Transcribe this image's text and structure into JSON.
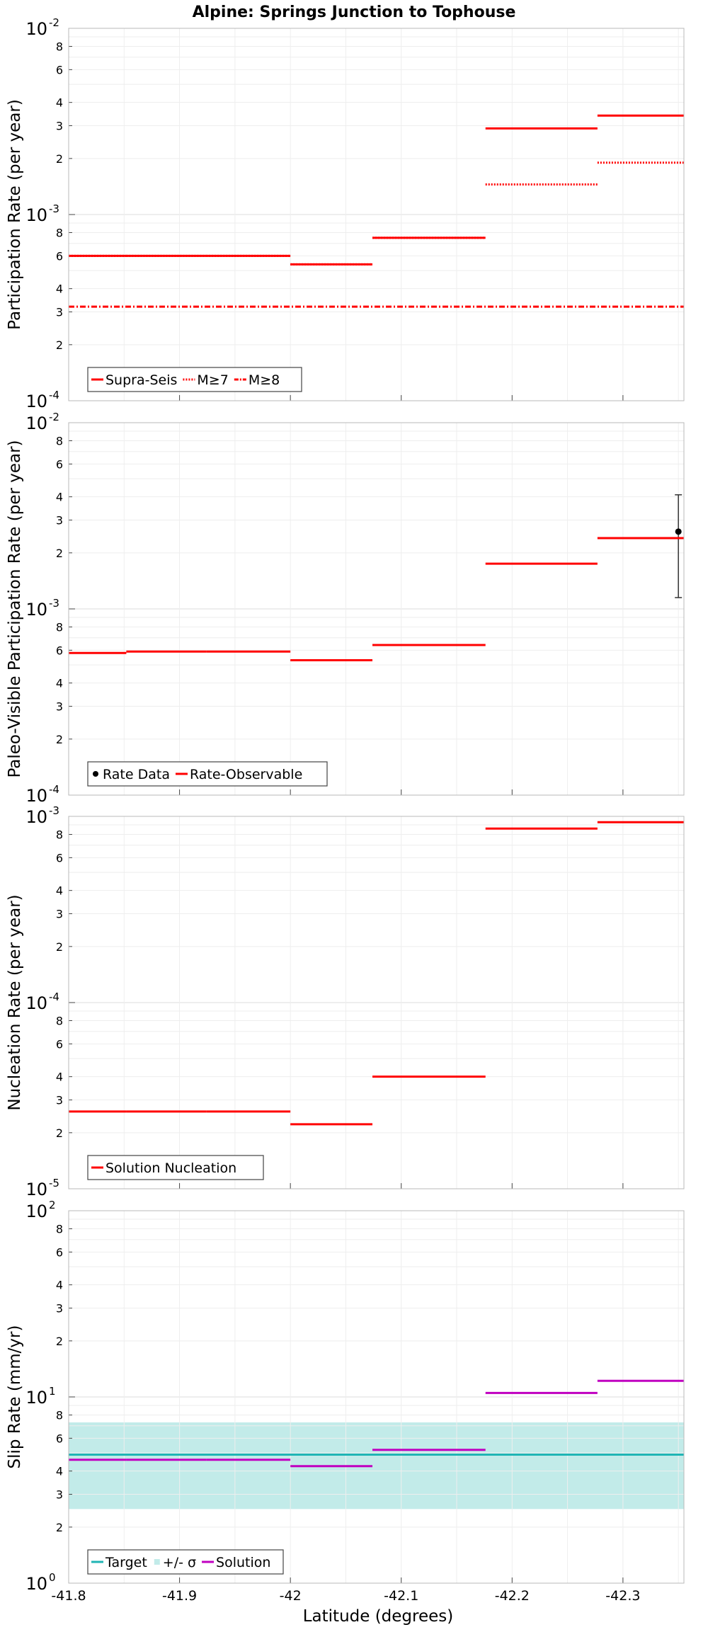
{
  "figure": {
    "title": "Alpine: Springs Junction to Tophouse",
    "xlabel": "Latitude (degrees)",
    "xlim": [
      -41.8,
      -42.355
    ],
    "xticks": [
      -41.8,
      -41.9,
      -42.0,
      -42.1,
      -42.2,
      -42.3
    ],
    "xtick_labels": [
      "-41.8",
      "-41.9",
      "-42",
      "-42.1",
      "-42.2",
      "-42.3"
    ]
  },
  "chart_data": [
    {
      "type": "line",
      "ylabel": "Participation Rate (per year)",
      "yscale": "log",
      "ylim": [
        0.0001,
        0.01
      ],
      "grid": true,
      "legend_position": "bottom-left",
      "major_tick_labels": [
        {
          "base": "10",
          "exp": "-4"
        },
        {
          "base": "10",
          "exp": "-3"
        },
        {
          "base": "10",
          "exp": "-2"
        }
      ],
      "series": [
        {
          "name": "Supra-Seis",
          "color": "#ff0000",
          "style": "solid",
          "segments": [
            {
              "x": [
                -41.8,
                -41.852
              ],
              "y": 0.0006
            },
            {
              "x": [
                -41.852,
                -41.924
              ],
              "y": 0.0006
            },
            {
              "x": [
                -41.924,
                -42.0
              ],
              "y": 0.0006
            },
            {
              "x": [
                -42.0,
                -42.074
              ],
              "y": 0.00054
            },
            {
              "x": [
                -42.074,
                -42.176
              ],
              "y": 0.00075
            },
            {
              "x": [
                -42.176,
                -42.277
              ],
              "y": 0.0029
            },
            {
              "x": [
                -42.277,
                -42.355
              ],
              "y": 0.0034
            }
          ]
        },
        {
          "name": "M≥7",
          "color": "#ff0000",
          "style": "dotted",
          "segments": [
            {
              "x": [
                -41.8,
                -41.852
              ],
              "y": 0.0006
            },
            {
              "x": [
                -41.852,
                -41.924
              ],
              "y": 0.0006
            },
            {
              "x": [
                -41.924,
                -42.0
              ],
              "y": 0.0006
            },
            {
              "x": [
                -42.0,
                -42.074
              ],
              "y": 0.00054
            },
            {
              "x": [
                -42.074,
                -42.176
              ],
              "y": 0.00075
            },
            {
              "x": [
                -42.176,
                -42.277
              ],
              "y": 0.00145
            },
            {
              "x": [
                -42.277,
                -42.355
              ],
              "y": 0.0019
            }
          ]
        },
        {
          "name": "M≥8",
          "color": "#ff0000",
          "style": "dashdot",
          "segments": [
            {
              "x": [
                -41.8,
                -42.355
              ],
              "y": 0.00032
            }
          ]
        }
      ]
    },
    {
      "type": "line",
      "ylabel": "Paleo-Visible Participation Rate (per year)",
      "yscale": "log",
      "ylim": [
        0.0001,
        0.01
      ],
      "grid": true,
      "legend_position": "bottom-left",
      "major_tick_labels": [
        {
          "base": "10",
          "exp": "-4"
        },
        {
          "base": "10",
          "exp": "-3"
        },
        {
          "base": "10",
          "exp": "-2"
        }
      ],
      "series": [
        {
          "name": "Rate Data",
          "color": "#000000",
          "style": "point",
          "points": [
            {
              "x": -42.35,
              "y": 0.0026,
              "ylow": 0.00115,
              "yhigh": 0.0041
            }
          ]
        },
        {
          "name": "Rate-Observable",
          "color": "#ff0000",
          "style": "solid",
          "segments": [
            {
              "x": [
                -41.8,
                -41.852
              ],
              "y": 0.00058
            },
            {
              "x": [
                -41.852,
                -41.924
              ],
              "y": 0.00059
            },
            {
              "x": [
                -41.924,
                -42.0
              ],
              "y": 0.00059
            },
            {
              "x": [
                -42.0,
                -42.074
              ],
              "y": 0.00053
            },
            {
              "x": [
                -42.074,
                -42.176
              ],
              "y": 0.00064
            },
            {
              "x": [
                -42.176,
                -42.277
              ],
              "y": 0.00175
            },
            {
              "x": [
                -42.277,
                -42.355
              ],
              "y": 0.0024
            }
          ]
        }
      ]
    },
    {
      "type": "line",
      "ylabel": "Nucleation Rate (per year)",
      "yscale": "log",
      "ylim": [
        1e-05,
        0.001
      ],
      "grid": true,
      "legend_position": "bottom-left",
      "major_tick_labels": [
        {
          "base": "10",
          "exp": "-5"
        },
        {
          "base": "10",
          "exp": "-4"
        },
        {
          "base": "10",
          "exp": "-3"
        }
      ],
      "series": [
        {
          "name": "Solution Nucleation",
          "color": "#ff0000",
          "style": "solid",
          "segments": [
            {
              "x": [
                -41.8,
                -41.852
              ],
              "y": 2.6e-05
            },
            {
              "x": [
                -41.852,
                -41.924
              ],
              "y": 2.6e-05
            },
            {
              "x": [
                -41.924,
                -42.0
              ],
              "y": 2.6e-05
            },
            {
              "x": [
                -42.0,
                -42.074
              ],
              "y": 2.22e-05
            },
            {
              "x": [
                -42.074,
                -42.176
              ],
              "y": 4e-05
            },
            {
              "x": [
                -42.176,
                -42.277
              ],
              "y": 0.00086
            },
            {
              "x": [
                -42.277,
                -42.355
              ],
              "y": 0.00093
            }
          ]
        }
      ]
    },
    {
      "type": "line",
      "ylabel": "Slip Rate (mm/yr)",
      "yscale": "log",
      "ylim": [
        1,
        100
      ],
      "grid": true,
      "legend_position": "bottom-left",
      "major_tick_labels": [
        {
          "base": "10",
          "exp": "0"
        },
        {
          "base": "10",
          "exp": "1"
        },
        {
          "base": "10",
          "exp": "2"
        }
      ],
      "band": {
        "name": "+/- σ",
        "color": "#c2ebe9",
        "x": [
          -41.8,
          -42.355
        ],
        "ylow": 2.5,
        "yhigh": 7.3
      },
      "series": [
        {
          "name": "Target",
          "color": "#1fb5b5",
          "style": "solid",
          "segments": [
            {
              "x": [
                -41.8,
                -42.355
              ],
              "y": 4.9
            }
          ]
        },
        {
          "name": "Solution",
          "color": "#c000c0",
          "style": "solid",
          "segments": [
            {
              "x": [
                -41.8,
                -41.852
              ],
              "y": 4.6
            },
            {
              "x": [
                -41.852,
                -41.924
              ],
              "y": 4.6
            },
            {
              "x": [
                -41.924,
                -42.0
              ],
              "y": 4.6
            },
            {
              "x": [
                -42.0,
                -42.074
              ],
              "y": 4.25
            },
            {
              "x": [
                -42.074,
                -42.176
              ],
              "y": 5.2
            },
            {
              "x": [
                -42.176,
                -42.277
              ],
              "y": 10.5
            },
            {
              "x": [
                -42.277,
                -42.355
              ],
              "y": 12.2
            }
          ]
        }
      ],
      "legend": [
        "Target",
        "+/- σ",
        "Solution"
      ]
    }
  ]
}
